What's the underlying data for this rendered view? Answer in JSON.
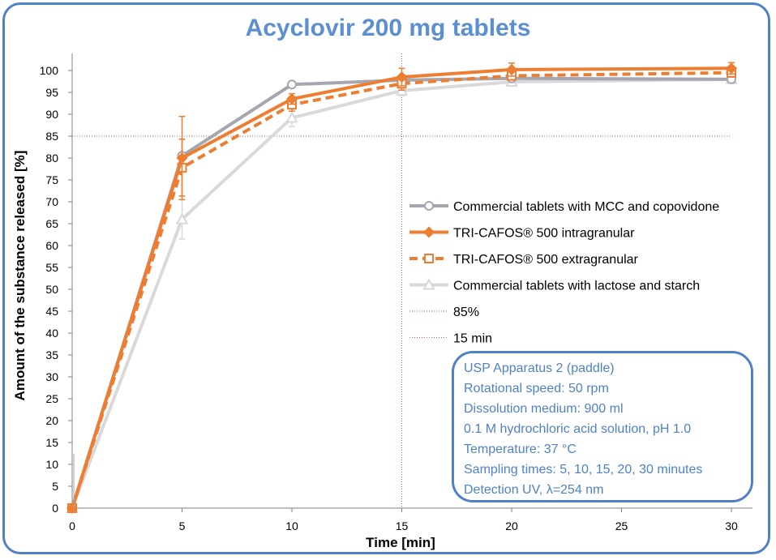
{
  "chart_data": {
    "type": "line",
    "title": "Acyclovir 200 mg tablets",
    "xlabel": "Time [min]",
    "ylabel": "Amount of the substance released [%]",
    "xlim": [
      0,
      30
    ],
    "ylim": [
      0,
      100
    ],
    "x_ticks": [
      0,
      5,
      10,
      15,
      20,
      25,
      30
    ],
    "y_ticks": [
      0,
      5,
      10,
      15,
      20,
      25,
      30,
      35,
      40,
      45,
      50,
      55,
      60,
      65,
      70,
      75,
      80,
      85,
      90,
      95,
      100
    ],
    "x": [
      0,
      5,
      10,
      15,
      20,
      30
    ],
    "series": [
      {
        "name": "Commercial tablets with MCC and copovidone",
        "color": "#a6a6b0",
        "dash": "solid",
        "marker": "circle",
        "values": [
          0,
          80.5,
          96.8,
          97.8,
          98.2,
          98.0
        ],
        "errors": [
          0,
          0,
          0.5,
          0.5,
          0.5,
          0.5
        ]
      },
      {
        "name": "TRI-CAFOS® 500 intragranular",
        "color": "#ed7d31",
        "dash": "solid",
        "marker": "diamond",
        "values": [
          0,
          80.0,
          93.5,
          98.5,
          100.2,
          100.5
        ],
        "errors": [
          0,
          9.5,
          1.2,
          2.0,
          1.5,
          1.3
        ]
      },
      {
        "name": "TRI-CAFOS® 500 extragranular",
        "color": "#ed7d31",
        "dash": "dashed",
        "marker": "square",
        "values": [
          0,
          77.8,
          92.2,
          97.0,
          98.8,
          99.5
        ],
        "errors": [
          0,
          6.5,
          1.5,
          1.5,
          1.0,
          1.0
        ]
      },
      {
        "name": "Commercial tablets with lactose and starch",
        "color": "#d9d9d9",
        "dash": "solid",
        "marker": "triangle",
        "values": [
          0,
          66.0,
          89.2,
          95.4,
          97.4,
          98.0
        ],
        "errors": [
          0,
          4.5,
          2.0,
          1.2,
          1.0,
          0.8
        ]
      }
    ],
    "reference_lines": [
      {
        "name": "85%",
        "axis": "y",
        "value": 85,
        "color": "#e05050"
      },
      {
        "name": "15 min",
        "axis": "x",
        "value": 15,
        "color": "#e05050"
      }
    ],
    "legend_position": "right"
  },
  "notes": [
    "USP Apparatus 2 (paddle)",
    "Rotational speed: 50 rpm",
    "Dissolution medium: 900 ml",
    "0.1 M hydrochloric acid solution, pH 1.0",
    "Temperature: 37 °C",
    "Sampling times: 5, 10, 15, 20, 30 minutes",
    "Detection UV, λ=254 nm"
  ]
}
